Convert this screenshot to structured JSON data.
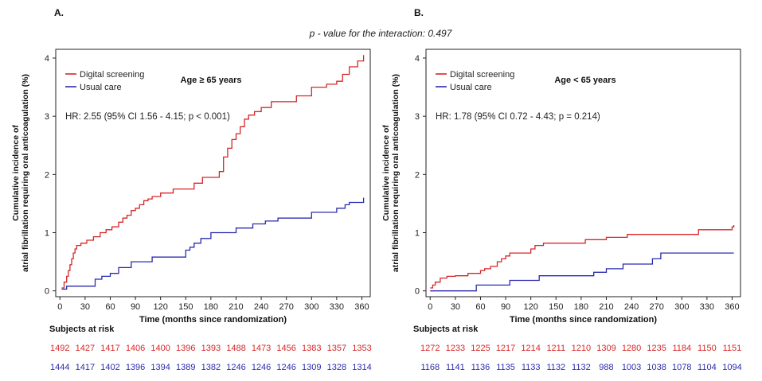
{
  "interaction_text": "p - value for the interaction: 0.497",
  "colors": {
    "digital": "#d62728",
    "usual": "#2b2bb0",
    "axis": "#222222"
  },
  "chart_data": [
    {
      "type": "line",
      "panel_label": "A.",
      "subgroup_label": "Age ≥ 65 years",
      "hr_text": "HR: 2.55 (95% CI 1.56 - 4.15; p < 0.001)",
      "xlabel": "Time (months since randomization)",
      "ylabel": [
        "Cumulative incidence of",
        "atrial fibrillation requiring oral anticoagulation (%)"
      ],
      "xlim": [
        -5,
        370
      ],
      "ylim": [
        -0.1,
        4.15
      ],
      "xticks": [
        0,
        30,
        60,
        90,
        120,
        150,
        180,
        210,
        240,
        270,
        300,
        330,
        360
      ],
      "yticks": [
        0,
        1,
        2,
        3,
        4
      ],
      "legend_position": "top-left",
      "series": [
        {
          "name": "Digital screening",
          "color_key": "digital",
          "x": [
            2,
            5,
            8,
            10,
            12,
            14,
            16,
            18,
            20,
            25,
            32,
            40,
            48,
            55,
            62,
            70,
            75,
            80,
            85,
            90,
            95,
            100,
            105,
            110,
            120,
            135,
            160,
            170,
            190,
            195,
            200,
            205,
            210,
            215,
            220,
            225,
            232,
            240,
            252,
            282,
            300,
            318,
            330,
            337,
            345,
            355,
            362
          ],
          "y": [
            0.05,
            0.15,
            0.25,
            0.35,
            0.45,
            0.55,
            0.65,
            0.72,
            0.78,
            0.82,
            0.87,
            0.93,
            1.0,
            1.05,
            1.1,
            1.18,
            1.25,
            1.3,
            1.38,
            1.42,
            1.48,
            1.55,
            1.58,
            1.62,
            1.68,
            1.75,
            1.85,
            1.95,
            2.05,
            2.3,
            2.45,
            2.6,
            2.7,
            2.82,
            2.95,
            3.02,
            3.08,
            3.15,
            3.25,
            3.35,
            3.5,
            3.55,
            3.6,
            3.72,
            3.85,
            3.95,
            4.05
          ]
        },
        {
          "name": "Usual care",
          "color_key": "usual",
          "x": [
            2,
            8,
            40,
            42,
            50,
            60,
            70,
            85,
            110,
            150,
            155,
            160,
            168,
            180,
            210,
            230,
            245,
            260,
            300,
            330,
            340,
            345,
            362
          ],
          "y": [
            0.03,
            0.08,
            0.08,
            0.2,
            0.25,
            0.3,
            0.4,
            0.5,
            0.58,
            0.7,
            0.75,
            0.82,
            0.9,
            1.0,
            1.08,
            1.15,
            1.2,
            1.25,
            1.35,
            1.42,
            1.48,
            1.52,
            1.6
          ]
        }
      ],
      "risk_label": "Subjects at risk",
      "risk_digital": [
        "1492",
        "1427",
        "1417",
        "1406",
        "1400",
        "1396",
        "1393",
        "1488",
        "1473",
        "1456",
        "1383",
        "1357",
        "1353"
      ],
      "risk_usual": [
        "1444",
        "1417",
        "1402",
        "1396",
        "1394",
        "1389",
        "1382",
        "1246",
        "1246",
        "1246",
        "1309",
        "1328",
        "1314"
      ]
    },
    {
      "type": "line",
      "panel_label": "B.",
      "subgroup_label": "Age < 65 years",
      "hr_text": "HR: 1.78 (95% CI 0.72 - 4.43; p = 0.214)",
      "xlabel": "Time (months since randomization)",
      "ylabel": [
        "Cumulative incidence of",
        "atrial fibrillation requiring oral anticoagulation (%)"
      ],
      "xlim": [
        -5,
        370
      ],
      "ylim": [
        -0.1,
        4.15
      ],
      "xticks": [
        0,
        30,
        60,
        90,
        120,
        150,
        180,
        210,
        240,
        270,
        300,
        330,
        360
      ],
      "yticks": [
        0,
        1,
        2,
        3,
        4
      ],
      "legend_position": "top-left",
      "series": [
        {
          "name": "Digital screening",
          "color_key": "digital",
          "x": [
            0,
            3,
            6,
            12,
            20,
            30,
            45,
            60,
            65,
            72,
            80,
            85,
            90,
            95,
            120,
            125,
            135,
            185,
            210,
            235,
            320,
            360,
            362
          ],
          "y": [
            0.05,
            0.1,
            0.15,
            0.22,
            0.25,
            0.26,
            0.3,
            0.35,
            0.38,
            0.42,
            0.5,
            0.55,
            0.6,
            0.65,
            0.72,
            0.78,
            0.82,
            0.88,
            0.92,
            0.97,
            1.05,
            1.1,
            1.13
          ]
        },
        {
          "name": "Usual care",
          "color_key": "usual",
          "x": [
            0,
            55,
            95,
            130,
            195,
            210,
            230,
            265,
            275,
            362
          ],
          "y": [
            0.0,
            0.1,
            0.18,
            0.26,
            0.32,
            0.38,
            0.46,
            0.55,
            0.65,
            0.65
          ]
        }
      ],
      "risk_label": "Subjects at risk",
      "risk_digital": [
        "1272",
        "1233",
        "1225",
        "1217",
        "1214",
        "1211",
        "1210",
        "1309",
        "1280",
        "1235",
        "1184",
        "1150",
        "1151"
      ],
      "risk_usual": [
        "1168",
        "1141",
        "1136",
        "1135",
        "1133",
        "1132",
        "1132",
        "988",
        "1003",
        "1038",
        "1078",
        "1104",
        "1094"
      ]
    }
  ]
}
